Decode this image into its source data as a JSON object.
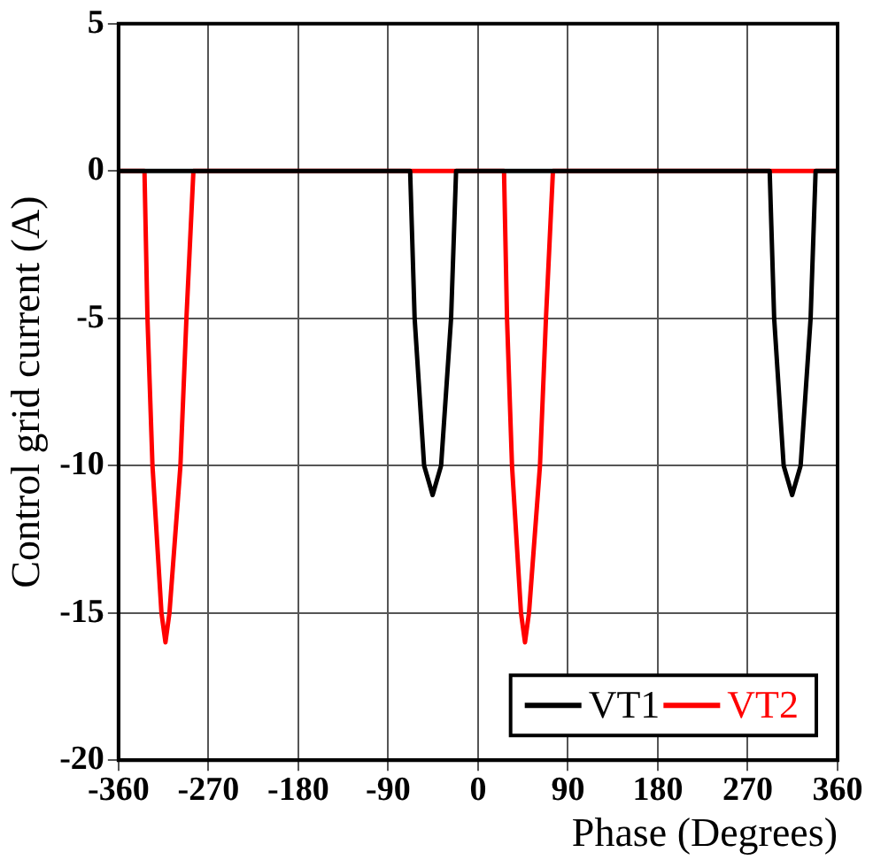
{
  "chart_data": {
    "type": "line",
    "xlabel": "Phase (Degrees)",
    "ylabel": "Control grid current (A)",
    "xlim": [
      -360,
      360
    ],
    "xticks": [
      -360,
      -270,
      -180,
      -90,
      0,
      90,
      180,
      270,
      360
    ],
    "ylim": [
      -20,
      5
    ],
    "yticks": [
      -20,
      -15,
      -10,
      -5,
      0,
      5
    ],
    "grid": true,
    "legend": "bottom right",
    "marker": "none",
    "line_style": "solid",
    "series": [
      {
        "name": "VT1",
        "color": "#000000",
        "x": [
          -360,
          -68,
          -63.5,
          -54,
          -45.5,
          -37,
          -27,
          -22,
          292,
          296.5,
          306,
          314.5,
          323,
          333,
          338,
          360
        ],
        "values": [
          0,
          0,
          -5,
          -10,
          -11,
          -10,
          -5,
          0,
          0,
          -5,
          -10,
          -11,
          -10,
          -5,
          0,
          0
        ]
      },
      {
        "name": "VT2",
        "color": "#ff0000",
        "x": [
          -360,
          -334,
          -331,
          -326,
          -317,
          -313,
          -309,
          -298,
          -292,
          -285,
          26,
          29,
          34,
          43,
          47,
          51,
          62,
          68,
          75,
          360
        ],
        "values": [
          0,
          0,
          -5,
          -10,
          -15,
          -16,
          -15,
          -10,
          -5,
          0,
          0,
          -5,
          -10,
          -15,
          -16,
          -15,
          -10,
          -5,
          0,
          0
        ]
      }
    ]
  }
}
